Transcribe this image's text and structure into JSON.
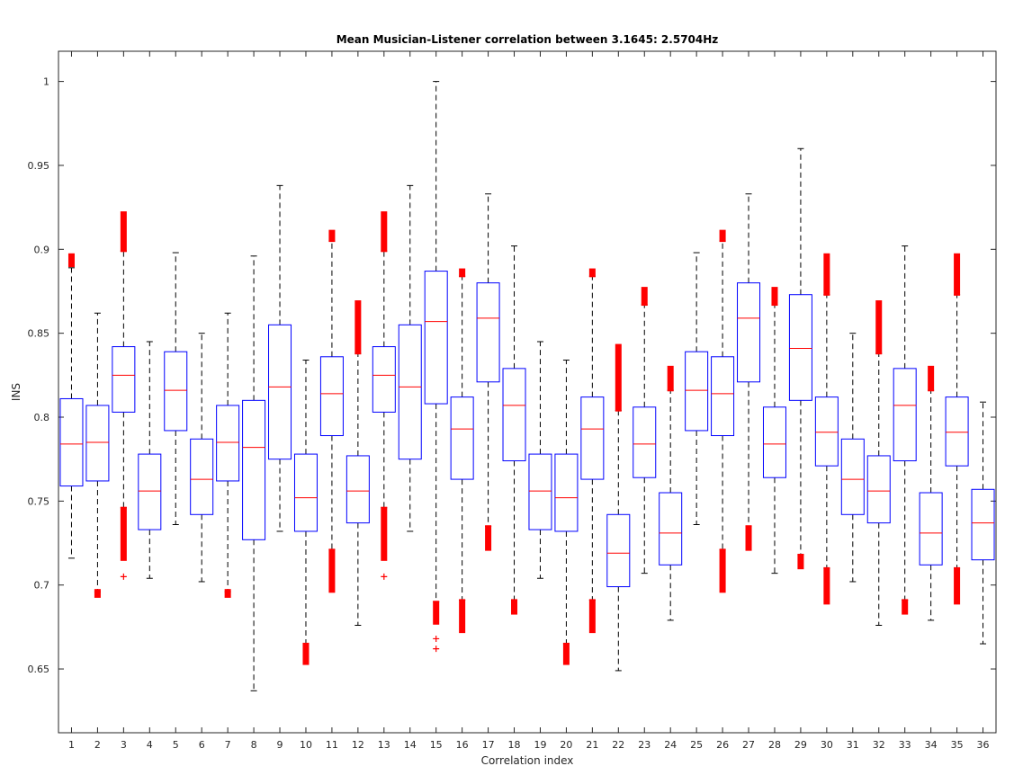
{
  "chart_data": {
    "type": "boxplot",
    "title": "Mean Musician-Listener correlation between 3.1645: 2.5704Hz",
    "xlabel": "Correlation index",
    "ylabel": "INS",
    "ylim": [
      0.612,
      1.018
    ],
    "yticks": [
      0.65,
      0.7,
      0.75,
      0.8,
      0.85,
      0.9,
      0.95,
      1
    ],
    "ytick_labels": [
      "0.65",
      "0.7",
      "0.75",
      "0.8",
      "0.85",
      "0.9",
      "0.95",
      "1"
    ],
    "categories": [
      "1",
      "2",
      "3",
      "4",
      "5",
      "6",
      "7",
      "8",
      "9",
      "10",
      "11",
      "12",
      "13",
      "14",
      "15",
      "16",
      "17",
      "18",
      "19",
      "20",
      "21",
      "22",
      "23",
      "24",
      "25",
      "26",
      "27",
      "28",
      "29",
      "30",
      "31",
      "32",
      "33",
      "34",
      "35",
      "36"
    ],
    "grid": false,
    "colors": {
      "box": "#0000ff",
      "median": "#ff0000",
      "outlier": "#ff0000",
      "whisker": "#000000"
    },
    "boxes": [
      {
        "q1": 0.759,
        "median": 0.784,
        "q3": 0.811,
        "whisker_low": 0.716,
        "whisker_high": 0.889,
        "outliers": [
          [
            0.891,
            0.896
          ]
        ]
      },
      {
        "q1": 0.762,
        "median": 0.785,
        "q3": 0.807,
        "whisker_low": 0.696,
        "whisker_high": 0.862,
        "outliers": [
          [
            0.694,
            0.696
          ]
        ]
      },
      {
        "q1": 0.803,
        "median": 0.825,
        "q3": 0.842,
        "whisker_low": 0.746,
        "whisker_high": 0.899,
        "outliers": [
          [
            0.9,
            0.921
          ],
          [
            0.716,
            0.745
          ],
          0.705
        ]
      },
      {
        "q1": 0.733,
        "median": 0.756,
        "q3": 0.778,
        "whisker_low": 0.704,
        "whisker_high": 0.845,
        "outliers": []
      },
      {
        "q1": 0.792,
        "median": 0.816,
        "q3": 0.839,
        "whisker_low": 0.736,
        "whisker_high": 0.898,
        "outliers": []
      },
      {
        "q1": 0.742,
        "median": 0.763,
        "q3": 0.787,
        "whisker_low": 0.702,
        "whisker_high": 0.85,
        "outliers": []
      },
      {
        "q1": 0.762,
        "median": 0.785,
        "q3": 0.807,
        "whisker_low": 0.696,
        "whisker_high": 0.862,
        "outliers": [
          [
            0.694,
            0.696
          ]
        ]
      },
      {
        "q1": 0.727,
        "median": 0.782,
        "q3": 0.81,
        "whisker_low": 0.637,
        "whisker_high": 0.896,
        "outliers": []
      },
      {
        "q1": 0.775,
        "median": 0.818,
        "q3": 0.855,
        "whisker_low": 0.732,
        "whisker_high": 0.938,
        "outliers": []
      },
      {
        "q1": 0.732,
        "median": 0.752,
        "q3": 0.778,
        "whisker_low": 0.665,
        "whisker_high": 0.834,
        "outliers": [
          [
            0.654,
            0.664
          ]
        ]
      },
      {
        "q1": 0.789,
        "median": 0.814,
        "q3": 0.836,
        "whisker_low": 0.721,
        "whisker_high": 0.905,
        "outliers": [
          [
            0.906,
            0.91
          ],
          [
            0.697,
            0.72
          ]
        ]
      },
      {
        "q1": 0.737,
        "median": 0.756,
        "q3": 0.777,
        "whisker_low": 0.676,
        "whisker_high": 0.838,
        "outliers": [
          [
            0.839,
            0.868
          ]
        ]
      },
      {
        "q1": 0.803,
        "median": 0.825,
        "q3": 0.842,
        "whisker_low": 0.746,
        "whisker_high": 0.899,
        "outliers": [
          [
            0.9,
            0.921
          ],
          [
            0.716,
            0.745
          ],
          0.705
        ]
      },
      {
        "q1": 0.775,
        "median": 0.818,
        "q3": 0.855,
        "whisker_low": 0.732,
        "whisker_high": 0.938,
        "outliers": []
      },
      {
        "q1": 0.808,
        "median": 0.857,
        "q3": 0.887,
        "whisker_low": 0.69,
        "whisker_high": 1.0,
        "outliers": [
          [
            0.678,
            0.689
          ],
          0.668,
          0.662
        ]
      },
      {
        "q1": 0.763,
        "median": 0.793,
        "q3": 0.812,
        "whisker_low": 0.691,
        "whisker_high": 0.884,
        "outliers": [
          [
            0.885,
            0.887
          ],
          [
            0.673,
            0.69
          ]
        ]
      },
      {
        "q1": 0.821,
        "median": 0.859,
        "q3": 0.88,
        "whisker_low": 0.735,
        "whisker_high": 0.933,
        "outliers": [
          [
            0.722,
            0.734
          ]
        ]
      },
      {
        "q1": 0.774,
        "median": 0.807,
        "q3": 0.829,
        "whisker_low": 0.691,
        "whisker_high": 0.902,
        "outliers": [
          [
            0.684,
            0.69
          ]
        ]
      },
      {
        "q1": 0.733,
        "median": 0.756,
        "q3": 0.778,
        "whisker_low": 0.704,
        "whisker_high": 0.845,
        "outliers": []
      },
      {
        "q1": 0.732,
        "median": 0.752,
        "q3": 0.778,
        "whisker_low": 0.665,
        "whisker_high": 0.834,
        "outliers": [
          [
            0.654,
            0.664
          ]
        ]
      },
      {
        "q1": 0.763,
        "median": 0.793,
        "q3": 0.812,
        "whisker_low": 0.691,
        "whisker_high": 0.884,
        "outliers": [
          [
            0.885,
            0.887
          ],
          [
            0.673,
            0.69
          ]
        ]
      },
      {
        "q1": 0.699,
        "median": 0.719,
        "q3": 0.742,
        "whisker_low": 0.649,
        "whisker_high": 0.804,
        "outliers": [
          [
            0.805,
            0.842
          ]
        ]
      },
      {
        "q1": 0.764,
        "median": 0.784,
        "q3": 0.806,
        "whisker_low": 0.707,
        "whisker_high": 0.867,
        "outliers": [
          [
            0.868,
            0.876
          ]
        ]
      },
      {
        "q1": 0.712,
        "median": 0.731,
        "q3": 0.755,
        "whisker_low": 0.679,
        "whisker_high": 0.816,
        "outliers": [
          [
            0.817,
            0.829
          ]
        ]
      },
      {
        "q1": 0.792,
        "median": 0.816,
        "q3": 0.839,
        "whisker_low": 0.736,
        "whisker_high": 0.898,
        "outliers": []
      },
      {
        "q1": 0.789,
        "median": 0.814,
        "q3": 0.836,
        "whisker_low": 0.721,
        "whisker_high": 0.905,
        "outliers": [
          [
            0.906,
            0.91
          ],
          [
            0.697,
            0.72
          ]
        ]
      },
      {
        "q1": 0.821,
        "median": 0.859,
        "q3": 0.88,
        "whisker_low": 0.735,
        "whisker_high": 0.933,
        "outliers": [
          [
            0.722,
            0.734
          ]
        ]
      },
      {
        "q1": 0.764,
        "median": 0.784,
        "q3": 0.806,
        "whisker_low": 0.707,
        "whisker_high": 0.867,
        "outliers": [
          [
            0.868,
            0.876
          ]
        ]
      },
      {
        "q1": 0.81,
        "median": 0.841,
        "q3": 0.873,
        "whisker_low": 0.718,
        "whisker_high": 0.96,
        "outliers": [
          [
            0.711,
            0.717
          ]
        ]
      },
      {
        "q1": 0.771,
        "median": 0.791,
        "q3": 0.812,
        "whisker_low": 0.71,
        "whisker_high": 0.873,
        "outliers": [
          [
            0.874,
            0.896
          ],
          [
            0.69,
            0.709
          ]
        ]
      },
      {
        "q1": 0.742,
        "median": 0.763,
        "q3": 0.787,
        "whisker_low": 0.702,
        "whisker_high": 0.85,
        "outliers": []
      },
      {
        "q1": 0.737,
        "median": 0.756,
        "q3": 0.777,
        "whisker_low": 0.676,
        "whisker_high": 0.838,
        "outliers": [
          [
            0.839,
            0.868
          ]
        ]
      },
      {
        "q1": 0.774,
        "median": 0.807,
        "q3": 0.829,
        "whisker_low": 0.691,
        "whisker_high": 0.902,
        "outliers": [
          [
            0.684,
            0.69
          ]
        ]
      },
      {
        "q1": 0.712,
        "median": 0.731,
        "q3": 0.755,
        "whisker_low": 0.679,
        "whisker_high": 0.816,
        "outliers": [
          [
            0.817,
            0.829
          ]
        ]
      },
      {
        "q1": 0.771,
        "median": 0.791,
        "q3": 0.812,
        "whisker_low": 0.71,
        "whisker_high": 0.873,
        "outliers": [
          [
            0.874,
            0.896
          ],
          [
            0.69,
            0.709
          ]
        ]
      },
      {
        "q1": 0.715,
        "median": 0.737,
        "q3": 0.757,
        "whisker_low": 0.665,
        "whisker_high": 0.809,
        "outliers": []
      }
    ]
  }
}
